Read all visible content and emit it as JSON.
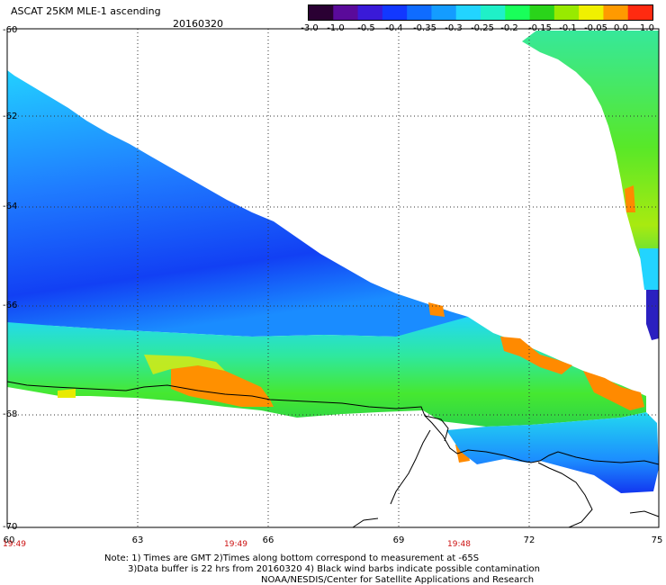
{
  "header": {
    "title": "ASCAT 25KM MLE-1 ascending",
    "date": "20160320"
  },
  "colorbar": {
    "labels": [
      "-3.0",
      "-1.0",
      "-0.5",
      "-0.4",
      "-0.35",
      "-0.3",
      "-0.25",
      "-0.2",
      "-0.15",
      "-0.1",
      "-0.05",
      "0.0",
      "1.0"
    ],
    "colors": [
      "#2a0033",
      "#5a0a9a",
      "#3a1ad8",
      "#1238ff",
      "#0f6cff",
      "#149cff",
      "#22d4ff",
      "#1ff0c8",
      "#19ff5a",
      "#2ad41a",
      "#98ea00",
      "#f0f000",
      "#ff9a00",
      "#ff2a10"
    ]
  },
  "axes": {
    "y_ticks": [
      "-60",
      "-62",
      "-64",
      "-66",
      "-68",
      "-70"
    ],
    "x_ticks": [
      "60",
      "63",
      "66",
      "69",
      "72",
      "75"
    ],
    "time_labels": [
      "19:49",
      "19:49",
      "19:48"
    ]
  },
  "footer": {
    "note1": "Note: 1) Times are GMT 2)Times along bottom correspond to measurement at -65S",
    "note2": "3)Data buffer is 22 hrs from 20160320 4) Black wind barbs indicate possible contamination",
    "credit": "NOAA/NESDIS/Center for Satellite Applications and Research"
  }
}
